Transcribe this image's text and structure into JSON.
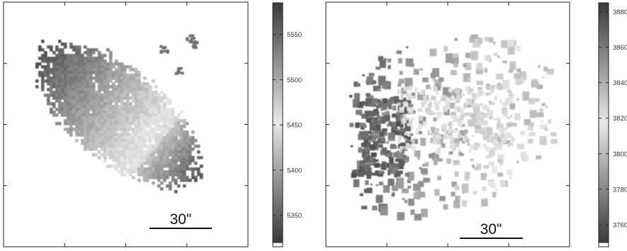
{
  "figure": {
    "panels": [
      {
        "id": "left",
        "colorbar": {
          "range": [
            5320,
            5585
          ],
          "ticks": [
            "5550",
            "5500",
            "5450",
            "5400",
            "5350"
          ]
        },
        "scale_bar_label": "30\""
      },
      {
        "id": "right",
        "colorbar": {
          "range": [
            3750,
            3885
          ],
          "ticks": [
            "3880",
            "3860",
            "3840",
            "3820",
            "3800",
            "3780",
            "3760"
          ]
        },
        "scale_bar_label": "30\""
      }
    ],
    "colors": {
      "colormap_dark": "#3c3c3c",
      "colormap_light": "#e6e6e6",
      "frame": "#222222",
      "background": "#ffffff"
    }
  }
}
